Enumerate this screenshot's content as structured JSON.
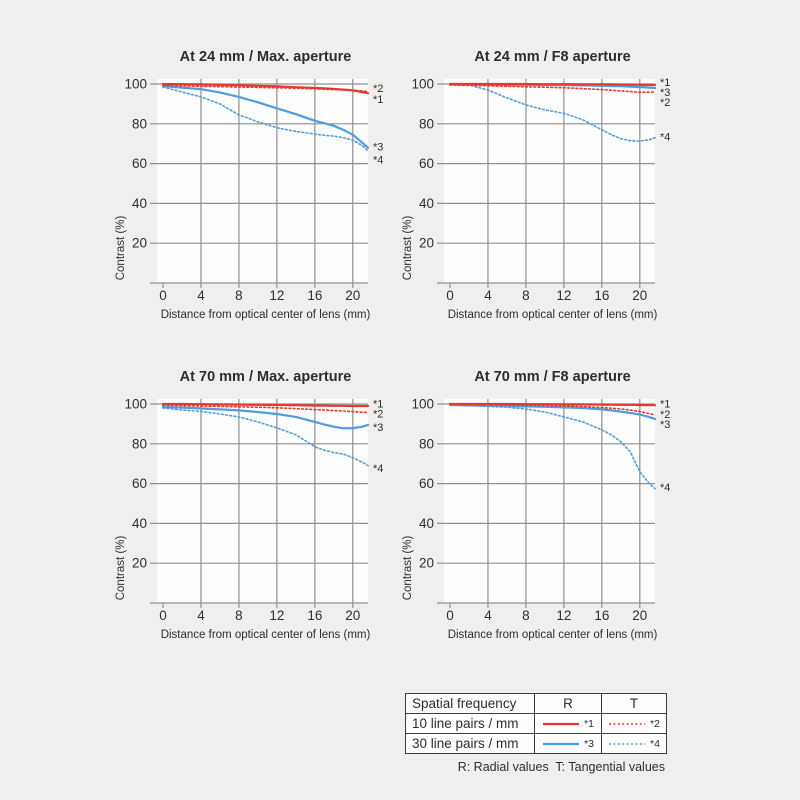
{
  "colors": {
    "red": "#e8372c",
    "blue": "#4f9ce0",
    "grid": "#8f8f8f",
    "text": "#2e2e2e",
    "page_bg": "#f0efed",
    "plot_bg": "#fdfdfd",
    "table_border": "#3e3e3e"
  },
  "chart_data": [
    {
      "type": "line",
      "title": "At 24 mm / Max. aperture",
      "xlabel": "Distance from optical center of lens (mm)",
      "ylabel": "Contrast (%)",
      "xlim": [
        0,
        21.6
      ],
      "ylim": [
        0,
        100
      ],
      "xticks": [
        0,
        4,
        8,
        12,
        16,
        20
      ],
      "yticks": [
        20,
        40,
        60,
        80,
        100
      ],
      "grid": true,
      "x": [
        0,
        2,
        4,
        6,
        8,
        10,
        12,
        14,
        16,
        17,
        18,
        19,
        20,
        21,
        21.6
      ],
      "series": [
        {
          "label": "*1",
          "color": "red",
          "style": "solid",
          "label_y": 92.5,
          "values": [
            100,
            99.9,
            99.8,
            99.6,
            99.4,
            99.1,
            98.8,
            98.4,
            98.0,
            97.8,
            97.5,
            97.2,
            96.8,
            96.0,
            95.4
          ]
        },
        {
          "label": "*2",
          "color": "red",
          "style": "dotted",
          "label_y": 98.0,
          "values": [
            99.3,
            99.1,
            98.9,
            98.7,
            98.5,
            98.3,
            98.1,
            97.9,
            97.6,
            97.4,
            97.2,
            97.1,
            96.9,
            96.5,
            96.2
          ]
        },
        {
          "label": "*3",
          "color": "blue",
          "style": "solid",
          "label_y": 68.5,
          "values": [
            99.0,
            98.2,
            97.4,
            95.8,
            93.5,
            90.8,
            87.8,
            84.8,
            81.5,
            80.3,
            79.0,
            77.0,
            74.5,
            70.5,
            68.0
          ]
        },
        {
          "label": "*4",
          "color": "blue",
          "style": "dotted",
          "label_y": 62.0,
          "values": [
            98.5,
            96.0,
            93.5,
            90.0,
            84.5,
            81.0,
            78.0,
            76.2,
            74.8,
            74.2,
            73.8,
            73.0,
            71.8,
            69.0,
            66.5
          ]
        }
      ]
    },
    {
      "type": "line",
      "title": "At 24 mm / F8 aperture",
      "xlabel": "Distance from optical center of lens (mm)",
      "ylabel": "Contrast (%)",
      "xlim": [
        0,
        21.6
      ],
      "ylim": [
        0,
        100
      ],
      "xticks": [
        0,
        4,
        8,
        12,
        16,
        20
      ],
      "yticks": [
        20,
        40,
        60,
        80,
        100
      ],
      "grid": true,
      "x": [
        0,
        2,
        4,
        6,
        8,
        10,
        12,
        14,
        16,
        17,
        18,
        19,
        20,
        21,
        21.6
      ],
      "series": [
        {
          "label": "*1",
          "color": "red",
          "style": "solid",
          "label_y": 101.0,
          "values": [
            100,
            100,
            100,
            100,
            100,
            99.9,
            99.9,
            99.8,
            99.8,
            99.8,
            99.7,
            99.7,
            99.6,
            99.5,
            99.5
          ]
        },
        {
          "label": "*2",
          "color": "red",
          "style": "dotted",
          "label_y": 91.0,
          "values": [
            99.5,
            99.3,
            99.1,
            98.9,
            98.6,
            98.4,
            98.1,
            97.7,
            97.2,
            96.9,
            96.5,
            96.2,
            95.9,
            95.9,
            96.0
          ]
        },
        {
          "label": "*3",
          "color": "blue",
          "style": "solid",
          "label_y": 96.0,
          "values": [
            99.8,
            99.8,
            99.7,
            99.7,
            99.6,
            99.5,
            99.4,
            99.3,
            99.1,
            99.0,
            98.9,
            98.7,
            98.5,
            98.2,
            98.0
          ]
        },
        {
          "label": "*4",
          "color": "blue",
          "style": "dotted",
          "label_y": 73.5,
          "values": [
            100,
            99.5,
            97.0,
            93.0,
            89.5,
            87.0,
            85.3,
            82.0,
            77.0,
            74.5,
            72.5,
            71.5,
            71.3,
            72.0,
            73.0
          ]
        }
      ]
    },
    {
      "type": "line",
      "title": "At 70 mm / Max. aperture",
      "xlabel": "Distance from optical center of lens (mm)",
      "ylabel": "Contrast (%)",
      "xlim": [
        0,
        21.6
      ],
      "ylim": [
        0,
        100
      ],
      "xticks": [
        0,
        4,
        8,
        12,
        16,
        20
      ],
      "yticks": [
        20,
        40,
        60,
        80,
        100
      ],
      "grid": true,
      "x": [
        0,
        2,
        4,
        6,
        8,
        10,
        12,
        14,
        16,
        17,
        18,
        19,
        20,
        21,
        21.6
      ],
      "series": [
        {
          "label": "*1",
          "color": "red",
          "style": "solid",
          "label_y": 100.3,
          "values": [
            100,
            100,
            99.9,
            99.8,
            99.7,
            99.6,
            99.5,
            99.4,
            99.2,
            99.2,
            99.1,
            99.1,
            99.0,
            99.0,
            99.0
          ]
        },
        {
          "label": "*2",
          "color": "red",
          "style": "dotted",
          "label_y": 95.2,
          "values": [
            99.4,
            99.2,
            99.0,
            98.8,
            98.6,
            98.4,
            98.1,
            97.7,
            97.2,
            97.0,
            96.7,
            96.5,
            96.2,
            95.9,
            95.7
          ]
        },
        {
          "label": "*3",
          "color": "blue",
          "style": "solid",
          "label_y": 88.5,
          "values": [
            98.5,
            98.2,
            97.8,
            97.3,
            96.8,
            96.0,
            95.0,
            93.5,
            91.0,
            89.7,
            88.6,
            87.8,
            87.9,
            88.6,
            89.5
          ]
        },
        {
          "label": "*4",
          "color": "blue",
          "style": "dotted",
          "label_y": 67.8,
          "values": [
            98.0,
            97.0,
            96.3,
            95.0,
            93.5,
            91.0,
            88.0,
            84.5,
            78.5,
            76.8,
            75.6,
            74.8,
            73.0,
            70.8,
            69.0
          ]
        }
      ]
    },
    {
      "type": "line",
      "title": "At 70 mm / F8 aperture",
      "xlabel": "Distance from optical center of lens (mm)",
      "ylabel": "Contrast (%)",
      "xlim": [
        0,
        21.6
      ],
      "ylim": [
        0,
        100
      ],
      "xticks": [
        0,
        4,
        8,
        12,
        16,
        20
      ],
      "yticks": [
        20,
        40,
        60,
        80,
        100
      ],
      "grid": true,
      "x": [
        0,
        2,
        4,
        6,
        8,
        10,
        12,
        14,
        16,
        17,
        18,
        19,
        20,
        21,
        21.6
      ],
      "series": [
        {
          "label": "*1",
          "color": "red",
          "style": "solid",
          "label_y": 100.3,
          "values": [
            100,
            100,
            100,
            100,
            99.9,
            99.9,
            99.8,
            99.8,
            99.7,
            99.7,
            99.6,
            99.6,
            99.5,
            99.4,
            99.4
          ]
        },
        {
          "label": "*2",
          "color": "red",
          "style": "dotted",
          "label_y": 95.0,
          "values": [
            99.8,
            99.7,
            99.6,
            99.5,
            99.4,
            99.2,
            99.0,
            98.7,
            98.2,
            97.9,
            97.5,
            97.0,
            96.2,
            95.2,
            94.5
          ]
        },
        {
          "label": "*3",
          "color": "blue",
          "style": "solid",
          "label_y": 90.0,
          "values": [
            99.5,
            99.3,
            99.2,
            99.0,
            98.8,
            98.6,
            98.3,
            98.0,
            97.3,
            96.8,
            96.2,
            95.5,
            94.7,
            93.4,
            92.5
          ]
        },
        {
          "label": "*4",
          "color": "blue",
          "style": "dotted",
          "label_y": 58.3,
          "values": [
            99.5,
            99.2,
            98.8,
            98.4,
            97.5,
            96.0,
            93.5,
            91.0,
            87.0,
            84.5,
            81.0,
            76.0,
            66.0,
            60.0,
            57.5
          ]
        }
      ]
    }
  ],
  "legend_table": {
    "header": [
      "Spatial frequency",
      "R",
      "T"
    ],
    "rows": [
      {
        "label": "10 line pairs / mm",
        "r": "*1",
        "t": "*2",
        "color": "red"
      },
      {
        "label": "30 line pairs / mm",
        "r": "*3",
        "t": "*4",
        "color": "blue"
      }
    ],
    "note": "R: Radial values  T: Tangential values"
  }
}
